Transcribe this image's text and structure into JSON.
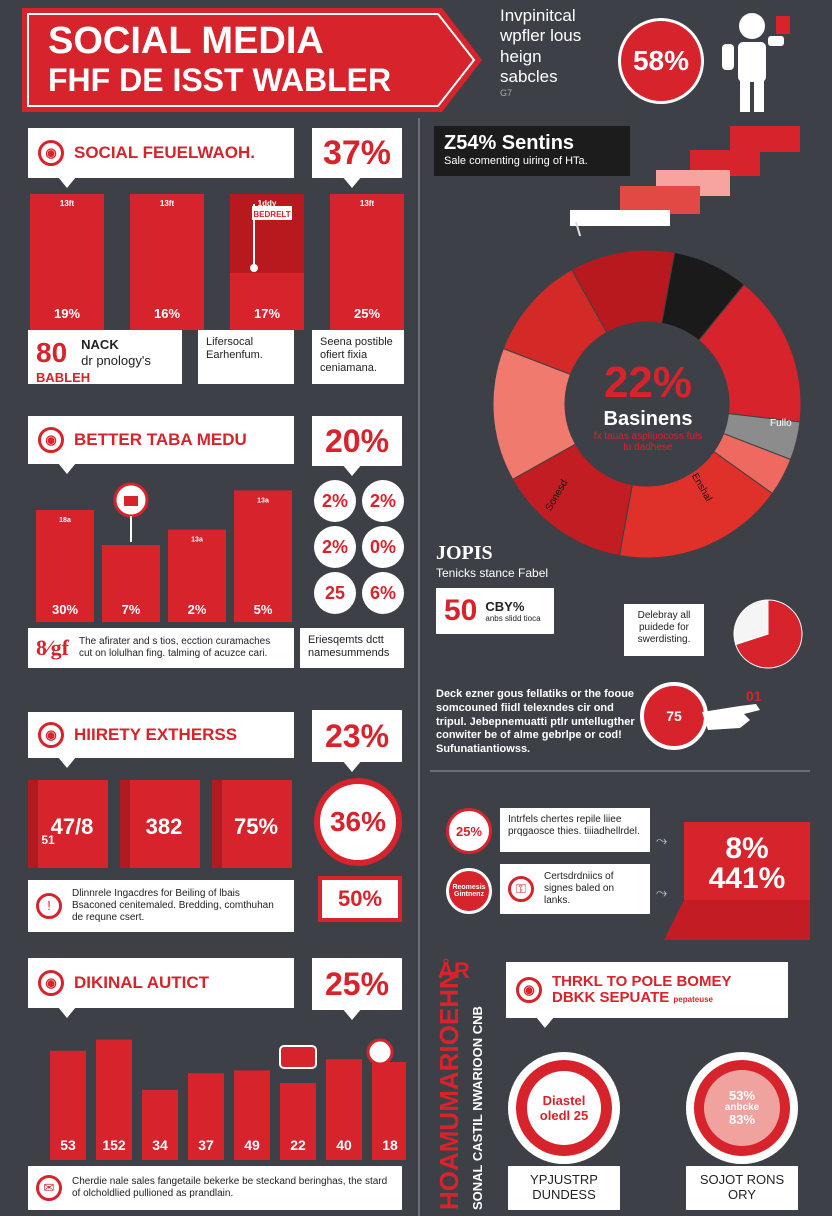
{
  "header": {
    "title_line1": "SOCIAL MEDIA",
    "title_line2": "FHF DE ISST WABLER",
    "side_lines": [
      "Invpinitcal",
      "wpfler lous",
      "heign",
      "sabcles"
    ],
    "side_small": "G7",
    "badge_value": "58%",
    "colors": {
      "red": "#d7232b",
      "dark": "#3d4147",
      "white": "#ffffff"
    }
  },
  "sections": {
    "s1": {
      "title": "SOCIAL FEUELWAOH.",
      "bubble": "37%",
      "notes": {
        "big": "80",
        "big_sub": "BABLEH",
        "n1_a": "NACK",
        "n1_b": "dr pnology's",
        "n2": "Lifersocal Earhenfum.",
        "n3": "Seena postible ofiert fixia ceniamana."
      }
    },
    "s2": {
      "title": "BETTER TABA MEDU",
      "bubble": "20%",
      "circles": [
        "2%",
        "2%",
        "2%",
        "0%",
        "25",
        "6%"
      ],
      "note_icon": "8∕gf",
      "note1": "The afirater and s tios, ecction curamaches cut on lolulhan fing. talming of acuzce cari.",
      "note2": "Eriesqemts dctt namesummends"
    },
    "s3": {
      "title": "HIIRETY EXTHERSS",
      "bubble": "23%",
      "circle": "36%",
      "tag": "50%",
      "note": "Dlinnrele Ingacdres for Beiling of lbais Bsaconed cenitemaled. Bredding, comthuhan de requne csert."
    },
    "s4": {
      "title": "DIKINAL AUTICT",
      "bubble": "25%",
      "note": "Cherdie nale sales fangetaile bekerke be steckand beringhas, the stard of olcholdlied pullioned as prandlain."
    },
    "right_top": {
      "title": "Z54% Sentins",
      "subtitle": "Sale comenting uiring of HTa.",
      "donut_value": "22%",
      "donut_label": "Basinens",
      "donut_sub": "fx tauas aspliuocoss fuls lu dadhese",
      "slice_labels": [
        "Sonesd",
        "Enshal",
        "Fullo"
      ]
    },
    "right_mid": {
      "label": "JOPIS",
      "sub": "Tenicks stance Fabel",
      "box_value": "50",
      "box_pct": "CBY%",
      "box_sub": "anbs slidd tioca",
      "side_note": "Delebray all puidede for swerdisting.",
      "para": "Deck ezner gous fellatiks or the fooue somcouned fiidl telexndes cir ond tripul. Jebepnemuatti ptlr untellugther conwiter be of alme gebrlpe or cod! Sufunatiantiowss.",
      "hand_value": "75",
      "hand_tag": "01"
    },
    "right_low": {
      "circle": "25%",
      "note1": "Intrfels chertes repile liiee prqgaosce thies. tiiiadhellrdel.",
      "note2": "Certsdrdniics of signes baled on lanks.",
      "badge_small": "Reomesis Gintnenz",
      "red_value1": "8%",
      "red_value2": "441%"
    },
    "right_bottom": {
      "vertical_red": "HOAMUMARIOEHN",
      "vertical_white": "SONAL CASTIL NWARIOON CNB",
      "top_glyph": "ÅR",
      "title1": "THRKL TO POLE BOMEY",
      "title2": "DBKK SEPUATE",
      "title_small": "pepateuse",
      "c1_line1": "Diastel",
      "c1_line2": "oledl 25",
      "c2_line1": "53%",
      "c2_line2": "anbcke",
      "c2_line3": "83%",
      "label1_a": "YPJUSTRP",
      "label1_b": "DUNDESS",
      "label2_a": "SOJOT RONS",
      "label2_b": "ORY"
    }
  },
  "chart_data": [
    {
      "type": "bar",
      "categories": [
        "",
        "",
        "",
        ""
      ],
      "values": [
        19,
        16,
        17,
        25
      ],
      "value_labels": [
        "19%",
        "16%",
        "17%",
        "25%"
      ],
      "top_labels": [
        "13ft",
        "13ft",
        "1ddy",
        "13ft"
      ],
      "flag_label": "BEDRELT"
    },
    {
      "type": "bar",
      "categories": [
        "",
        "",
        "",
        ""
      ],
      "values": [
        30,
        7,
        2,
        5
      ],
      "value_labels": [
        "30%",
        "7%",
        "2%",
        "5%"
      ],
      "top_labels": [
        "18a",
        "",
        "13a",
        "13a"
      ],
      "heights_frac": [
        0.8,
        0.55,
        0.66,
        0.94
      ]
    },
    {
      "type": "bar",
      "categories": [
        "",
        "",
        ""
      ],
      "value_labels": [
        "47/8",
        "382",
        "75%"
      ],
      "sub_label": "51"
    },
    {
      "type": "bar",
      "values": [
        53,
        152,
        34,
        37,
        49,
        22,
        40,
        18
      ],
      "value_labels": [
        "53",
        "152",
        "34",
        "37",
        "49",
        "22",
        "40",
        "18"
      ],
      "heights_frac": [
        0.78,
        0.86,
        0.5,
        0.62,
        0.64,
        0.55,
        0.72,
        0.7
      ]
    },
    {
      "type": "pie",
      "center_label": "22%",
      "slices": [
        {
          "value": 8,
          "color": "#1a1a1a"
        },
        {
          "value": 16,
          "color": "#d7232b"
        },
        {
          "value": 4,
          "color": "#8c8c8c"
        },
        {
          "value": 4,
          "color": "#ee6a60"
        },
        {
          "value": 18,
          "color": "#e0302a"
        },
        {
          "value": 14,
          "color": "#c11d22"
        },
        {
          "value": 14,
          "color": "#f07a6e"
        },
        {
          "value": 11,
          "color": "#d32a28"
        },
        {
          "value": 11,
          "color": "#b8191f"
        }
      ]
    },
    {
      "type": "pie",
      "slices": [
        {
          "value": 70,
          "color": "#d7232b"
        },
        {
          "value": 30,
          "color": "#f5f5f5"
        }
      ]
    }
  ]
}
